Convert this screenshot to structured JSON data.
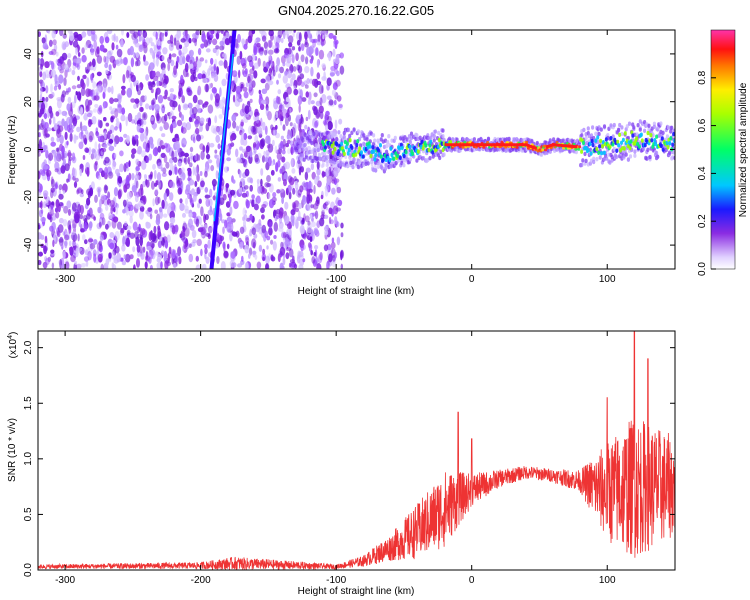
{
  "title": "GN04.2025.270.16.22.G05",
  "chart_data": [
    {
      "type": "heatmap",
      "xlabel": "Height of straight line (km)",
      "ylabel": "Frequency (Hz)",
      "xlim": [
        -320,
        150
      ],
      "ylim": [
        -50,
        50
      ],
      "xticks": [
        -300,
        -200,
        -100,
        0,
        100
      ],
      "yticks": [
        -40,
        -20,
        0,
        20,
        40
      ],
      "colorbar": {
        "label": "Normalized spectral amplitude",
        "range": [
          0,
          1
        ],
        "ticks": [
          0.0,
          0.2,
          0.4,
          0.6,
          0.8
        ]
      },
      "features": {
        "noise_region_x": [
          -320,
          -100
        ],
        "sweep_line": [
          [
            -192,
            -50
          ],
          [
            -175,
            50
          ]
        ],
        "tone_track": [
          [
            -100,
            1
          ],
          [
            -80,
            0
          ],
          [
            -60,
            -2
          ],
          [
            -40,
            1
          ],
          [
            -20,
            2
          ],
          [
            0,
            2
          ],
          [
            20,
            2
          ],
          [
            40,
            2
          ],
          [
            50,
            0
          ],
          [
            60,
            2
          ],
          [
            80,
            1
          ],
          [
            100,
            2
          ],
          [
            120,
            4
          ],
          [
            150,
            3
          ]
        ]
      }
    },
    {
      "type": "line",
      "xlabel": "Height of straight line (km)",
      "ylabel": "SNR (10 * v/v)",
      "multiplier": "(x10",
      "multiplier_exp": "4",
      "multiplier_close": ")",
      "xlim": [
        -320,
        150
      ],
      "ylim": [
        0,
        2.15
      ],
      "xticks": [
        -300,
        -200,
        -100,
        0,
        100
      ],
      "yticks": [
        0.0,
        0.5,
        1.0,
        1.5,
        2.0
      ],
      "series": [
        {
          "color": "#ee3333",
          "envelope": [
            {
              "x": -320,
              "mean": 0.03,
              "spread": 0.02
            },
            {
              "x": -200,
              "mean": 0.04,
              "spread": 0.03
            },
            {
              "x": -175,
              "mean": 0.06,
              "spread": 0.06
            },
            {
              "x": -100,
              "mean": 0.03,
              "spread": 0.02
            },
            {
              "x": -80,
              "mean": 0.08,
              "spread": 0.05
            },
            {
              "x": -60,
              "mean": 0.2,
              "spread": 0.12
            },
            {
              "x": -40,
              "mean": 0.35,
              "spread": 0.25
            },
            {
              "x": -20,
              "mean": 0.55,
              "spread": 0.35
            },
            {
              "x": 0,
              "mean": 0.72,
              "spread": 0.15
            },
            {
              "x": 20,
              "mean": 0.82,
              "spread": 0.08
            },
            {
              "x": 40,
              "mean": 0.88,
              "spread": 0.06
            },
            {
              "x": 60,
              "mean": 0.85,
              "spread": 0.06
            },
            {
              "x": 80,
              "mean": 0.8,
              "spread": 0.1
            },
            {
              "x": 100,
              "mean": 0.7,
              "spread": 0.45
            },
            {
              "x": 120,
              "mean": 0.75,
              "spread": 0.65
            },
            {
              "x": 150,
              "mean": 0.75,
              "spread": 0.45
            }
          ],
          "peaks": [
            [
              -10,
              1.42
            ],
            [
              0,
              1.18
            ],
            [
              120,
              2.15
            ],
            [
              130,
              1.9
            ],
            [
              100,
              1.55
            ]
          ]
        }
      ]
    }
  ]
}
